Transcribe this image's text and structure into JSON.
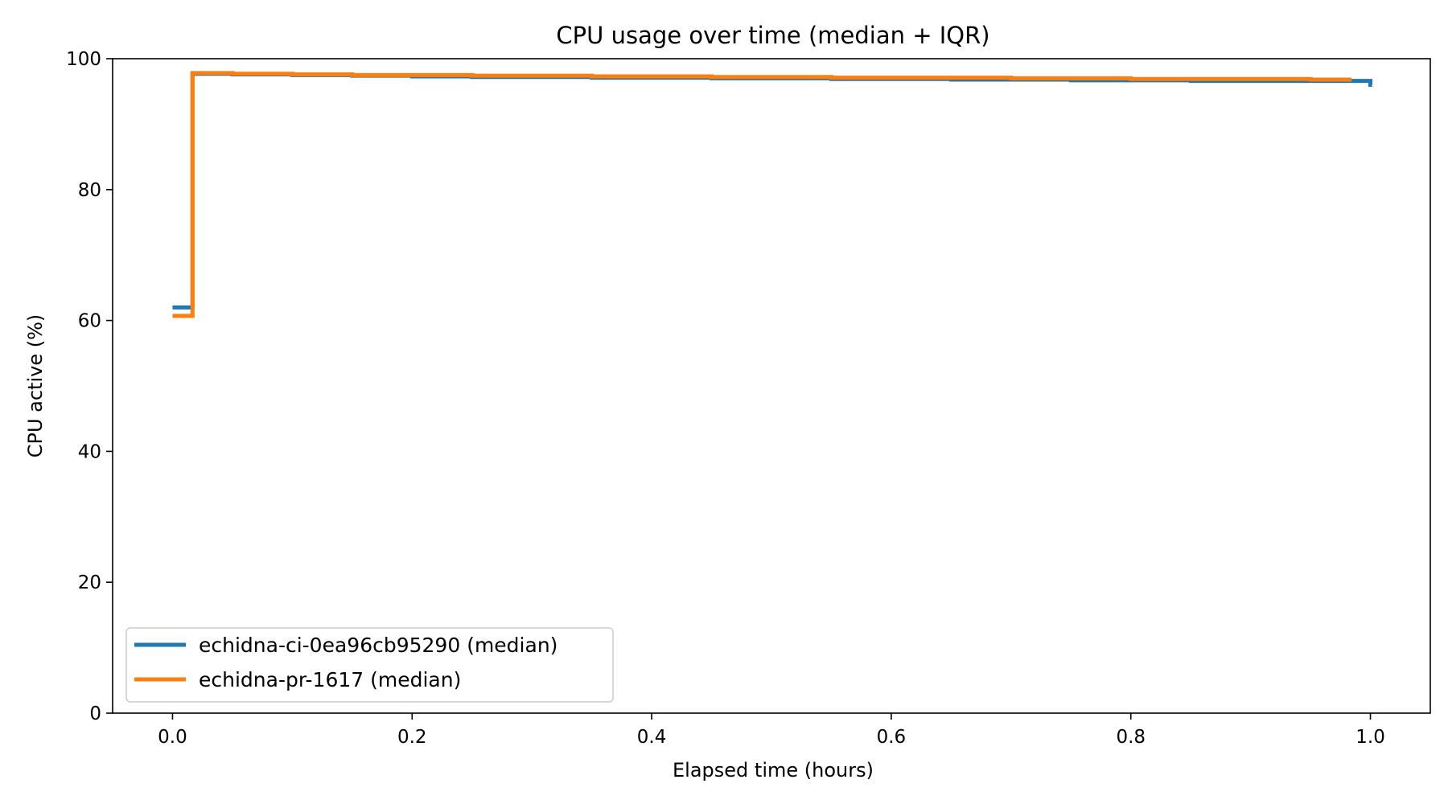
{
  "chart_data": {
    "type": "line",
    "step": true,
    "title": "CPU usage over time (median + IQR)",
    "xlabel": "Elapsed time (hours)",
    "ylabel": "CPU active (%)",
    "xlim": [
      -0.05,
      1.05
    ],
    "ylim": [
      0,
      100
    ],
    "xticks": [
      0.0,
      0.2,
      0.4,
      0.6,
      0.8,
      1.0
    ],
    "xtick_labels": [
      "0.0",
      "0.2",
      "0.4",
      "0.6",
      "0.8",
      "1.0"
    ],
    "yticks": [
      0,
      20,
      40,
      60,
      80,
      100
    ],
    "ytick_labels": [
      "0",
      "20",
      "40",
      "60",
      "80",
      "100"
    ],
    "grid": false,
    "legend_position": "lower-left",
    "series": [
      {
        "name": "echidna-ci-0ea96cb95290 (median)",
        "color": "#1f77b4",
        "points": [
          [
            0.0,
            62.0
          ],
          [
            0.0167,
            97.7
          ],
          [
            0.05,
            97.6
          ],
          [
            0.1,
            97.5
          ],
          [
            0.15,
            97.4
          ],
          [
            0.2,
            97.3
          ],
          [
            0.25,
            97.2
          ],
          [
            0.3,
            97.2
          ],
          [
            0.35,
            97.1
          ],
          [
            0.4,
            97.1
          ],
          [
            0.45,
            97.0
          ],
          [
            0.5,
            97.0
          ],
          [
            0.55,
            96.9
          ],
          [
            0.6,
            96.9
          ],
          [
            0.65,
            96.8
          ],
          [
            0.7,
            96.8
          ],
          [
            0.75,
            96.7
          ],
          [
            0.8,
            96.7
          ],
          [
            0.85,
            96.6
          ],
          [
            0.9,
            96.6
          ],
          [
            0.95,
            96.6
          ],
          [
            1.0,
            96.0
          ]
        ]
      },
      {
        "name": "echidna-pr-1617 (median)",
        "color": "#ff7f0e",
        "points": [
          [
            0.0,
            60.7
          ],
          [
            0.0167,
            97.8
          ],
          [
            0.05,
            97.7
          ],
          [
            0.1,
            97.6
          ],
          [
            0.15,
            97.5
          ],
          [
            0.2,
            97.5
          ],
          [
            0.25,
            97.4
          ],
          [
            0.3,
            97.4
          ],
          [
            0.35,
            97.3
          ],
          [
            0.4,
            97.3
          ],
          [
            0.45,
            97.2
          ],
          [
            0.5,
            97.2
          ],
          [
            0.55,
            97.1
          ],
          [
            0.6,
            97.1
          ],
          [
            0.65,
            97.1
          ],
          [
            0.7,
            97.0
          ],
          [
            0.75,
            97.0
          ],
          [
            0.8,
            96.9
          ],
          [
            0.85,
            96.9
          ],
          [
            0.9,
            96.9
          ],
          [
            0.95,
            96.8
          ],
          [
            0.983,
            96.8
          ]
        ]
      }
    ]
  }
}
